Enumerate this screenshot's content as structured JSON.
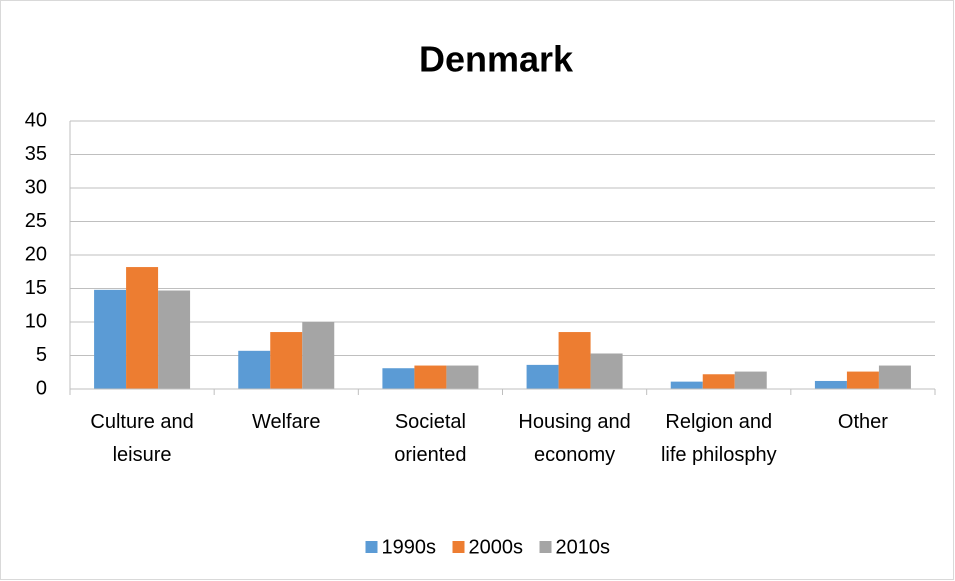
{
  "chart_data": {
    "type": "bar",
    "title": "Denmark",
    "categories": [
      "Culture and leisure",
      "Welfare",
      "Societal oriented",
      "Housing and economy",
      "Relgion and life philosphy",
      "Other"
    ],
    "series": [
      {
        "name": "1990s",
        "color": "#5b9bd5",
        "values": [
          14.8,
          5.7,
          3.1,
          3.6,
          1.1,
          1.2
        ]
      },
      {
        "name": "2000s",
        "color": "#ed7d31",
        "values": [
          18.2,
          8.5,
          3.5,
          8.5,
          2.2,
          2.6
        ]
      },
      {
        "name": "2010s",
        "color": "#a5a5a5",
        "values": [
          14.7,
          10.0,
          3.5,
          5.3,
          2.6,
          3.5
        ]
      }
    ],
    "ylim": [
      0,
      40
    ],
    "yticks": [
      0,
      5,
      10,
      15,
      20,
      25,
      30,
      35,
      40
    ],
    "grid": true,
    "legend": "bottom"
  }
}
